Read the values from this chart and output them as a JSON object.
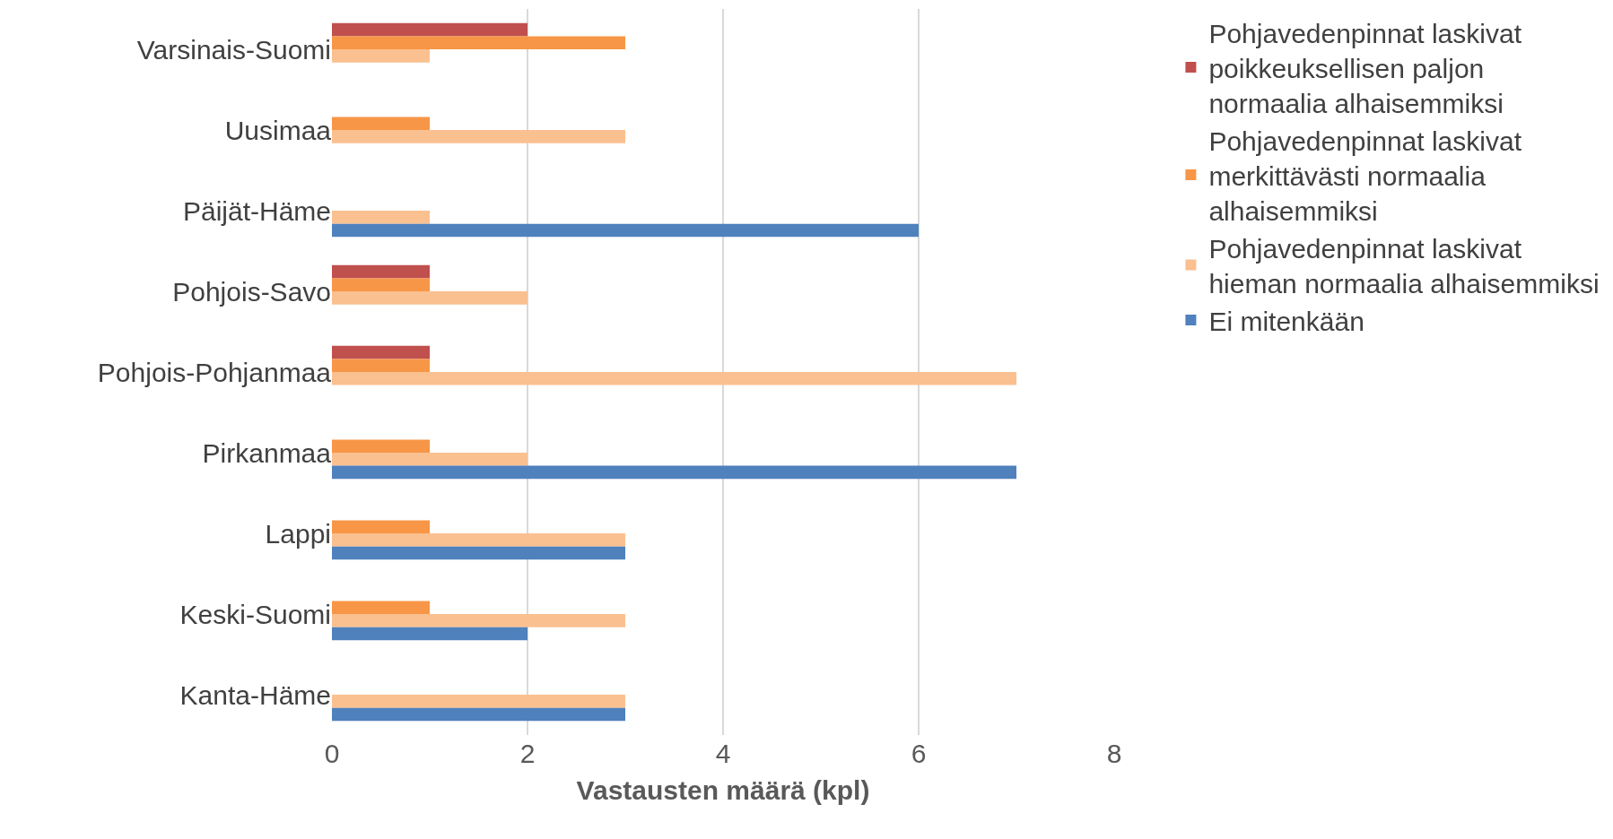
{
  "chart_data": {
    "type": "bar",
    "orientation": "horizontal",
    "xlabel": "Vastausten määrä (kpl)",
    "categories": [
      "Varsinais-Suomi",
      "Uusimaa",
      "Päijät-Häme",
      "Pohjois-Savo",
      "Pohjois-Pohjanmaa",
      "Pirkanmaa",
      "Lappi",
      "Keski-Suomi",
      "Kanta-Häme"
    ],
    "series": [
      {
        "name": "Pohjavedenpinnat laskivat poikkeuksellisen paljon normaalia alhaisemmiksi",
        "color": "#c0504d",
        "values": [
          2,
          null,
          null,
          1,
          1,
          null,
          null,
          null,
          null
        ]
      },
      {
        "name": "Pohjavedenpinnat laskivat merkittävästi normaalia alhaisemmiksi",
        "color": "#f79646",
        "values": [
          3,
          1,
          null,
          1,
          1,
          1,
          1,
          1,
          null
        ]
      },
      {
        "name": "Pohjavedenpinnat laskivat hieman normaalia alhaisemmiksi",
        "color": "#fac090",
        "values": [
          1,
          3,
          1,
          2,
          7,
          2,
          3,
          3,
          3
        ]
      },
      {
        "name": "Ei mitenkään",
        "color": "#4f81bd",
        "values": [
          null,
          null,
          6,
          null,
          null,
          7,
          3,
          2,
          3
        ]
      }
    ],
    "xlim": [
      0,
      8
    ],
    "xticks": [
      0,
      2,
      4,
      6,
      8
    ],
    "grid": "x",
    "legend": "right"
  }
}
